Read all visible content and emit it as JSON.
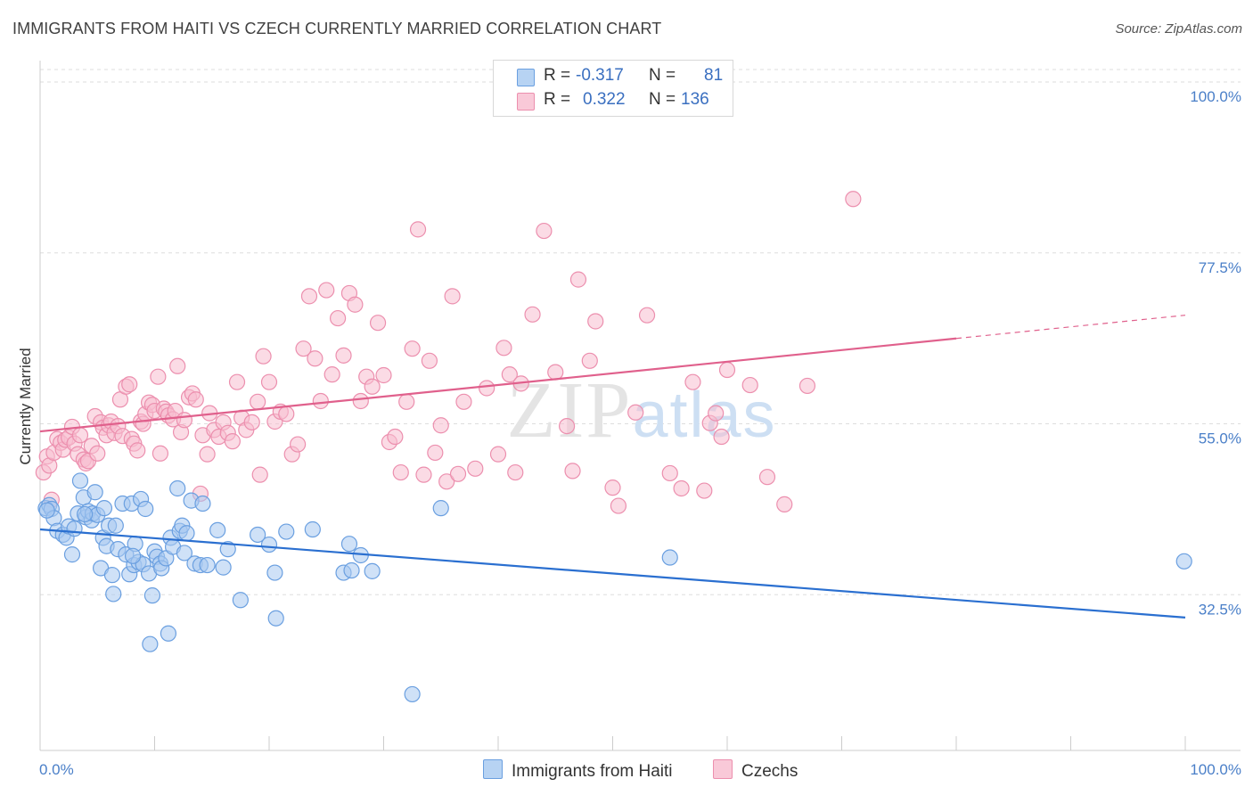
{
  "title": "IMMIGRANTS FROM HAITI VS CZECH CURRENTLY MARRIED CORRELATION CHART",
  "source": "Source: ZipAtlas.com",
  "legend": {
    "rows": [
      {
        "r_label": "R =",
        "r_value": "-0.317",
        "n_label": "N =",
        "n_value": "81"
      },
      {
        "r_label": "R =",
        "r_value": "0.322",
        "n_label": "N =",
        "n_value": "136"
      }
    ]
  },
  "bottom_legend": [
    "Immigrants from Haiti",
    "Czechs"
  ],
  "colors": {
    "blue_fill": "#a8c8f0",
    "blue_stroke": "#6a9fe0",
    "blue_line": "#2a6fd0",
    "pink_fill": "#f7bed0",
    "pink_stroke": "#ec8fae",
    "pink_line": "#e0608c",
    "tick_text": "#4a7fc8",
    "grid": "#dddddd"
  },
  "chart_data": {
    "type": "scatter",
    "title": "IMMIGRANTS FROM HAITI VS CZECH CURRENTLY MARRIED CORRELATION CHART",
    "xlabel": "",
    "ylabel": "Currently Married",
    "xlim": [
      0,
      100
    ],
    "ylim": [
      12,
      102
    ],
    "x_tick_labels": [
      "0.0%",
      "100.0%"
    ],
    "y_ticks": [
      32.5,
      55.0,
      77.5,
      100.0
    ],
    "y_tick_labels": [
      "32.5%",
      "55.0%",
      "77.5%",
      "100.0%"
    ],
    "grid": true,
    "watermark": "ZIPatlas",
    "series": [
      {
        "name": "Immigrants from Haiti",
        "r": -0.317,
        "n": 81,
        "trend": {
          "x": [
            0,
            100
          ],
          "y": [
            41.1,
            29.5
          ],
          "dashed_from": null
        },
        "points": [
          [
            0.5,
            43.9
          ],
          [
            0.8,
            44.3
          ],
          [
            1.0,
            43.8
          ],
          [
            1.2,
            42.6
          ],
          [
            1.5,
            40.9
          ],
          [
            2.0,
            40.4
          ],
          [
            2.3,
            40.0
          ],
          [
            2.5,
            41.5
          ],
          [
            2.8,
            37.8
          ],
          [
            3.0,
            41.2
          ],
          [
            3.3,
            43.2
          ],
          [
            3.5,
            47.5
          ],
          [
            3.8,
            45.3
          ],
          [
            4.0,
            42.7
          ],
          [
            4.2,
            43.5
          ],
          [
            4.5,
            42.3
          ],
          [
            4.6,
            43.2
          ],
          [
            4.8,
            46.0
          ],
          [
            5.0,
            43.0
          ],
          [
            5.3,
            36.0
          ],
          [
            5.5,
            40.0
          ],
          [
            5.6,
            43.9
          ],
          [
            5.8,
            38.9
          ],
          [
            6.0,
            41.6
          ],
          [
            6.3,
            35.1
          ],
          [
            6.4,
            32.6
          ],
          [
            6.6,
            41.6
          ],
          [
            6.8,
            38.5
          ],
          [
            7.2,
            44.5
          ],
          [
            7.5,
            37.8
          ],
          [
            7.8,
            35.2
          ],
          [
            8.0,
            44.5
          ],
          [
            8.2,
            36.4
          ],
          [
            8.3,
            39.2
          ],
          [
            8.6,
            36.8
          ],
          [
            8.8,
            45.1
          ],
          [
            9.0,
            36.5
          ],
          [
            9.2,
            43.8
          ],
          [
            9.5,
            35.3
          ],
          [
            9.6,
            26.0
          ],
          [
            9.8,
            32.4
          ],
          [
            10.0,
            38.2
          ],
          [
            10.2,
            37.5
          ],
          [
            10.5,
            36.6
          ],
          [
            10.6,
            36.0
          ],
          [
            11.0,
            37.3
          ],
          [
            11.2,
            27.4
          ],
          [
            11.4,
            40.0
          ],
          [
            11.6,
            38.8
          ],
          [
            12.0,
            46.5
          ],
          [
            12.2,
            40.9
          ],
          [
            12.4,
            41.6
          ],
          [
            12.6,
            38.0
          ],
          [
            12.8,
            40.6
          ],
          [
            13.2,
            44.9
          ],
          [
            13.5,
            36.6
          ],
          [
            14.0,
            36.4
          ],
          [
            14.2,
            44.5
          ],
          [
            14.6,
            36.4
          ],
          [
            15.5,
            41.0
          ],
          [
            16.0,
            36.1
          ],
          [
            16.4,
            38.5
          ],
          [
            17.5,
            31.8
          ],
          [
            19.0,
            40.4
          ],
          [
            20.0,
            39.1
          ],
          [
            20.5,
            35.4
          ],
          [
            20.6,
            29.4
          ],
          [
            21.5,
            40.8
          ],
          [
            23.8,
            41.1
          ],
          [
            26.5,
            35.4
          ],
          [
            27.0,
            39.2
          ],
          [
            27.2,
            35.7
          ],
          [
            28.0,
            37.7
          ],
          [
            29.0,
            35.6
          ],
          [
            32.5,
            19.4
          ],
          [
            35.0,
            43.9
          ],
          [
            55.0,
            37.4
          ],
          [
            99.9,
            36.9
          ],
          [
            0.6,
            43.6
          ],
          [
            3.9,
            43.1
          ],
          [
            8.1,
            37.6
          ]
        ]
      },
      {
        "name": "Czechs",
        "r": 0.322,
        "n": 136,
        "trend": {
          "x": [
            0,
            100
          ],
          "y": [
            54.0,
            69.3
          ],
          "dashed_from": 80
        },
        "points": [
          [
            0.3,
            48.6
          ],
          [
            0.6,
            50.7
          ],
          [
            0.8,
            49.5
          ],
          [
            1.0,
            45.0
          ],
          [
            1.2,
            51.2
          ],
          [
            1.5,
            53.0
          ],
          [
            1.8,
            52.5
          ],
          [
            2.0,
            51.6
          ],
          [
            2.2,
            52.9
          ],
          [
            2.5,
            53.2
          ],
          [
            2.8,
            54.6
          ],
          [
            3.0,
            52.4
          ],
          [
            3.3,
            51.0
          ],
          [
            3.5,
            53.5
          ],
          [
            3.8,
            50.3
          ],
          [
            4.0,
            49.8
          ],
          [
            4.2,
            50.1
          ],
          [
            4.5,
            52.1
          ],
          [
            4.8,
            56.0
          ],
          [
            5.0,
            51.1
          ],
          [
            5.3,
            55.2
          ],
          [
            5.5,
            54.5
          ],
          [
            5.8,
            53.5
          ],
          [
            6.0,
            54.8
          ],
          [
            6.2,
            55.3
          ],
          [
            6.5,
            53.8
          ],
          [
            6.8,
            54.7
          ],
          [
            7.0,
            58.2
          ],
          [
            7.2,
            53.4
          ],
          [
            7.5,
            59.9
          ],
          [
            7.8,
            60.2
          ],
          [
            8.0,
            53.0
          ],
          [
            8.2,
            52.4
          ],
          [
            8.5,
            51.5
          ],
          [
            8.8,
            55.3
          ],
          [
            9.0,
            55.0
          ],
          [
            9.2,
            56.3
          ],
          [
            9.5,
            57.8
          ],
          [
            9.8,
            57.5
          ],
          [
            10.0,
            56.7
          ],
          [
            10.3,
            61.2
          ],
          [
            10.5,
            51.1
          ],
          [
            10.8,
            57.0
          ],
          [
            11.0,
            56.6
          ],
          [
            11.2,
            56.1
          ],
          [
            11.6,
            55.6
          ],
          [
            11.8,
            56.7
          ],
          [
            12.0,
            62.6
          ],
          [
            12.3,
            53.9
          ],
          [
            12.6,
            55.5
          ],
          [
            13.0,
            58.5
          ],
          [
            13.3,
            59.0
          ],
          [
            13.6,
            58.2
          ],
          [
            14.0,
            45.8
          ],
          [
            14.2,
            53.5
          ],
          [
            14.6,
            51.0
          ],
          [
            14.8,
            56.4
          ],
          [
            15.2,
            54.2
          ],
          [
            15.6,
            53.3
          ],
          [
            16.0,
            55.2
          ],
          [
            16.4,
            53.8
          ],
          [
            16.8,
            52.7
          ],
          [
            17.2,
            60.5
          ],
          [
            17.6,
            55.8
          ],
          [
            18.0,
            54.2
          ],
          [
            18.5,
            55.2
          ],
          [
            19.0,
            57.9
          ],
          [
            19.2,
            48.3
          ],
          [
            19.5,
            63.9
          ],
          [
            20.0,
            60.5
          ],
          [
            20.5,
            55.3
          ],
          [
            21.0,
            56.6
          ],
          [
            21.5,
            56.3
          ],
          [
            22.0,
            51.0
          ],
          [
            22.5,
            52.3
          ],
          [
            23.0,
            64.9
          ],
          [
            23.5,
            71.8
          ],
          [
            24.0,
            63.6
          ],
          [
            24.5,
            58.0
          ],
          [
            25.0,
            72.6
          ],
          [
            25.5,
            61.5
          ],
          [
            26.0,
            68.9
          ],
          [
            26.5,
            64.0
          ],
          [
            27.0,
            72.2
          ],
          [
            27.5,
            70.7
          ],
          [
            28.0,
            58.0
          ],
          [
            28.5,
            61.2
          ],
          [
            29.0,
            59.9
          ],
          [
            29.5,
            68.3
          ],
          [
            30.0,
            61.4
          ],
          [
            30.5,
            52.6
          ],
          [
            31.0,
            53.3
          ],
          [
            31.5,
            48.6
          ],
          [
            32.0,
            57.9
          ],
          [
            32.5,
            64.9
          ],
          [
            33.0,
            80.6
          ],
          [
            33.5,
            48.3
          ],
          [
            34.0,
            63.3
          ],
          [
            34.5,
            51.2
          ],
          [
            35.0,
            54.8
          ],
          [
            35.5,
            47.4
          ],
          [
            36.0,
            71.8
          ],
          [
            36.5,
            48.4
          ],
          [
            37.0,
            57.9
          ],
          [
            38.0,
            49.1
          ],
          [
            39.0,
            59.7
          ],
          [
            40.0,
            51.0
          ],
          [
            40.5,
            65.0
          ],
          [
            41.0,
            61.5
          ],
          [
            41.5,
            48.6
          ],
          [
            42.0,
            60.3
          ],
          [
            43.0,
            69.4
          ],
          [
            44.0,
            80.4
          ],
          [
            45.0,
            61.8
          ],
          [
            46.0,
            54.7
          ],
          [
            46.5,
            48.8
          ],
          [
            47.0,
            74.0
          ],
          [
            48.0,
            63.3
          ],
          [
            48.5,
            68.5
          ],
          [
            50.0,
            46.6
          ],
          [
            50.5,
            44.2
          ],
          [
            52.0,
            56.5
          ],
          [
            53.0,
            69.3
          ],
          [
            55.0,
            48.5
          ],
          [
            56.0,
            46.5
          ],
          [
            57.0,
            60.5
          ],
          [
            58.0,
            46.2
          ],
          [
            58.5,
            55.1
          ],
          [
            59.0,
            56.4
          ],
          [
            59.5,
            53.3
          ],
          [
            60.0,
            62.1
          ],
          [
            62.0,
            60.1
          ],
          [
            63.5,
            48.0
          ],
          [
            65.0,
            44.4
          ],
          [
            67.0,
            60.0
          ],
          [
            71.0,
            84.6
          ]
        ]
      }
    ]
  }
}
